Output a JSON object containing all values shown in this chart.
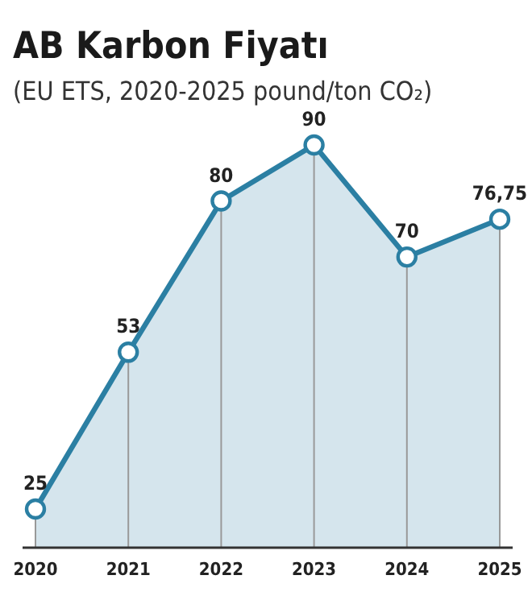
{
  "chart_data": {
    "type": "area",
    "title": "AB Karbon Fiyatı",
    "subtitle": "(EU ETS, 2020-2025 pound/ton CO₂)",
    "categories": [
      "2020",
      "2021",
      "2022",
      "2023",
      "2024",
      "2025"
    ],
    "series": [
      {
        "color": "#2b7fa3",
        "values": [
          25,
          53,
          80,
          90,
          70,
          76.75
        ],
        "value_labels": [
          "25",
          "53",
          "80",
          "90",
          "70",
          "76,75"
        ]
      }
    ],
    "grid": "x",
    "marker": "circle",
    "tick_labels": "x"
  }
}
